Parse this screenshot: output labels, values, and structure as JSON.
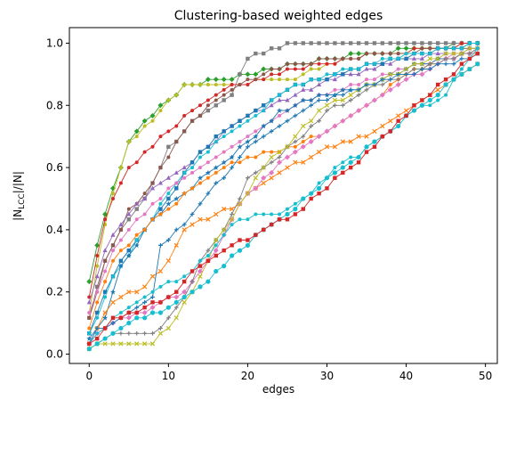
{
  "chart_data": {
    "type": "line",
    "title": "Clustering-based weighted edges",
    "xlabel": "edges",
    "ylabel": "|N_LCC|/|N|",
    "xlim": [
      -2.5,
      51.5
    ],
    "ylim": [
      -0.03,
      1.05
    ],
    "xticks": [
      0,
      10,
      20,
      30,
      40,
      50
    ],
    "yticks": [
      0.0,
      0.2,
      0.4,
      0.6,
      0.8,
      1.0
    ],
    "grid": false,
    "legend": false,
    "series": [
      {
        "color": "#2ca02c",
        "marker": "diamond",
        "anchors": [
          [
            0,
            0.24
          ],
          [
            2,
            0.45
          ],
          [
            4,
            0.6
          ],
          [
            5,
            0.69
          ],
          [
            8,
            0.77
          ],
          [
            12,
            0.86
          ],
          [
            16,
            0.88
          ],
          [
            22,
            0.91
          ],
          [
            30,
            0.95
          ],
          [
            40,
            0.98
          ],
          [
            49,
            1.0
          ]
        ]
      },
      {
        "color": "#bcbd22",
        "marker": "circle",
        "anchors": [
          [
            0,
            0.14
          ],
          [
            2,
            0.42
          ],
          [
            4,
            0.6
          ],
          [
            5,
            0.68
          ],
          [
            8,
            0.75
          ],
          [
            12,
            0.87
          ],
          [
            16,
            0.87
          ],
          [
            25,
            0.88
          ],
          [
            30,
            0.93
          ],
          [
            35,
            0.96
          ],
          [
            49,
            1.0
          ]
        ]
      },
      {
        "color": "#7f7f7f",
        "marker": "square",
        "anchors": [
          [
            0,
            0.12
          ],
          [
            2,
            0.3
          ],
          [
            4,
            0.4
          ],
          [
            7,
            0.5
          ],
          [
            10,
            0.66
          ],
          [
            14,
            0.77
          ],
          [
            18,
            0.84
          ],
          [
            20,
            0.95
          ],
          [
            25,
            1.0
          ],
          [
            49,
            1.0
          ]
        ]
      },
      {
        "color": "#d62728",
        "marker": "circle",
        "anchors": [
          [
            0,
            0.18
          ],
          [
            2,
            0.44
          ],
          [
            5,
            0.6
          ],
          [
            8,
            0.67
          ],
          [
            10,
            0.72
          ],
          [
            14,
            0.8
          ],
          [
            18,
            0.86
          ],
          [
            25,
            0.91
          ],
          [
            35,
            0.96
          ],
          [
            49,
            1.0
          ]
        ]
      },
      {
        "color": "#8c564b",
        "marker": "circle",
        "anchors": [
          [
            0,
            0.11
          ],
          [
            2,
            0.3
          ],
          [
            5,
            0.46
          ],
          [
            8,
            0.55
          ],
          [
            12,
            0.72
          ],
          [
            16,
            0.82
          ],
          [
            20,
            0.88
          ],
          [
            25,
            0.93
          ],
          [
            35,
            0.96
          ],
          [
            49,
            0.99
          ]
        ]
      },
      {
        "color": "#9467bd",
        "marker": "triangle",
        "anchors": [
          [
            0,
            0.16
          ],
          [
            2,
            0.34
          ],
          [
            5,
            0.45
          ],
          [
            9,
            0.55
          ],
          [
            13,
            0.62
          ],
          [
            17,
            0.71
          ],
          [
            21,
            0.78
          ],
          [
            25,
            0.82
          ],
          [
            30,
            0.88
          ],
          [
            40,
            0.95
          ],
          [
            49,
            0.98
          ]
        ]
      },
      {
        "color": "#1f77b4",
        "marker": "square",
        "anchors": [
          [
            0,
            0.07
          ],
          [
            2,
            0.2
          ],
          [
            4,
            0.3
          ],
          [
            7,
            0.4
          ],
          [
            10,
            0.5
          ],
          [
            13,
            0.62
          ],
          [
            16,
            0.7
          ],
          [
            20,
            0.76
          ],
          [
            26,
            0.86
          ],
          [
            35,
            0.93
          ],
          [
            49,
            1.0
          ]
        ]
      },
      {
        "color": "#17becf",
        "marker": "circle",
        "anchors": [
          [
            0,
            0.06
          ],
          [
            3,
            0.25
          ],
          [
            6,
            0.36
          ],
          [
            9,
            0.48
          ],
          [
            12,
            0.58
          ],
          [
            16,
            0.68
          ],
          [
            20,
            0.75
          ],
          [
            25,
            0.85
          ],
          [
            30,
            0.9
          ],
          [
            40,
            0.96
          ],
          [
            49,
            1.0
          ]
        ]
      },
      {
        "color": "#e377c2",
        "marker": "circle",
        "anchors": [
          [
            0,
            0.13
          ],
          [
            3,
            0.33
          ],
          [
            6,
            0.43
          ],
          [
            10,
            0.53
          ],
          [
            14,
            0.6
          ],
          [
            18,
            0.66
          ],
          [
            22,
            0.73
          ],
          [
            26,
            0.8
          ],
          [
            30,
            0.84
          ],
          [
            35,
            0.88
          ],
          [
            40,
            0.92
          ],
          [
            49,
            0.98
          ]
        ]
      },
      {
        "color": "#1f77b4",
        "marker": "star",
        "anchors": [
          [
            0,
            0.05
          ],
          [
            2,
            0.12
          ],
          [
            4,
            0.28
          ],
          [
            8,
            0.43
          ],
          [
            12,
            0.52
          ],
          [
            16,
            0.6
          ],
          [
            20,
            0.68
          ],
          [
            24,
            0.78
          ],
          [
            28,
            0.82
          ],
          [
            35,
            0.86
          ],
          [
            40,
            0.92
          ],
          [
            49,
            0.97
          ]
        ]
      },
      {
        "color": "#ff7f0e",
        "marker": "circle",
        "anchors": [
          [
            0,
            0.09
          ],
          [
            3,
            0.3
          ],
          [
            6,
            0.38
          ],
          [
            9,
            0.45
          ],
          [
            13,
            0.53
          ],
          [
            17,
            0.6
          ],
          [
            21,
            0.64
          ],
          [
            25,
            0.66
          ],
          [
            30,
            0.72
          ],
          [
            35,
            0.8
          ],
          [
            40,
            0.9
          ],
          [
            45,
            0.95
          ],
          [
            49,
            0.97
          ]
        ]
      },
      {
        "color": "#ff7f0e",
        "marker": "x",
        "anchors": [
          [
            0,
            0.04
          ],
          [
            3,
            0.17
          ],
          [
            7,
            0.22
          ],
          [
            10,
            0.3
          ],
          [
            12,
            0.4
          ],
          [
            15,
            0.44
          ],
          [
            18,
            0.47
          ],
          [
            20,
            0.51
          ],
          [
            25,
            0.6
          ],
          [
            30,
            0.66
          ],
          [
            35,
            0.7
          ],
          [
            40,
            0.78
          ],
          [
            45,
            0.86
          ],
          [
            49,
            0.93
          ]
        ]
      },
      {
        "color": "#e377c2",
        "marker": "diamond",
        "anchors": [
          [
            0,
            0.04
          ],
          [
            3,
            0.1
          ],
          [
            8,
            0.15
          ],
          [
            12,
            0.2
          ],
          [
            15,
            0.3
          ],
          [
            17,
            0.38
          ],
          [
            19,
            0.49
          ],
          [
            22,
            0.56
          ],
          [
            25,
            0.64
          ],
          [
            30,
            0.72
          ],
          [
            35,
            0.8
          ],
          [
            40,
            0.88
          ],
          [
            45,
            0.95
          ],
          [
            49,
            0.98
          ]
        ]
      },
      {
        "color": "#7f7f7f",
        "marker": "plus",
        "anchors": [
          [
            0,
            0.02
          ],
          [
            2,
            0.05
          ],
          [
            3,
            0.07
          ],
          [
            8,
            0.07
          ],
          [
            9,
            0.09
          ],
          [
            12,
            0.18
          ],
          [
            14,
            0.3
          ],
          [
            17,
            0.4
          ],
          [
            20,
            0.56
          ],
          [
            23,
            0.62
          ],
          [
            27,
            0.7
          ],
          [
            30,
            0.78
          ],
          [
            35,
            0.85
          ],
          [
            40,
            0.9
          ],
          [
            45,
            0.95
          ],
          [
            49,
            0.98
          ]
        ]
      },
      {
        "color": "#bcbd22",
        "marker": "x",
        "anchors": [
          [
            0,
            0.02
          ],
          [
            2,
            0.03
          ],
          [
            8,
            0.03
          ],
          [
            9,
            0.06
          ],
          [
            11,
            0.12
          ],
          [
            14,
            0.25
          ],
          [
            16,
            0.36
          ],
          [
            19,
            0.48
          ],
          [
            22,
            0.6
          ],
          [
            26,
            0.7
          ],
          [
            30,
            0.8
          ],
          [
            35,
            0.86
          ],
          [
            40,
            0.92
          ],
          [
            49,
            0.99
          ]
        ]
      },
      {
        "color": "#1f77b4",
        "marker": "plus",
        "anchors": [
          [
            0,
            0.03
          ],
          [
            1,
            0.08
          ],
          [
            3,
            0.1
          ],
          [
            6,
            0.15
          ],
          [
            8,
            0.18
          ],
          [
            9,
            0.35
          ],
          [
            12,
            0.42
          ],
          [
            15,
            0.52
          ],
          [
            18,
            0.6
          ],
          [
            20,
            0.66
          ],
          [
            24,
            0.74
          ],
          [
            28,
            0.8
          ],
          [
            32,
            0.84
          ],
          [
            40,
            0.9
          ],
          [
            49,
            0.96
          ]
        ]
      },
      {
        "color": "#17becf",
        "marker": "circle",
        "anchors": [
          [
            0,
            0.03
          ],
          [
            3,
            0.12
          ],
          [
            6,
            0.17
          ],
          [
            9,
            0.22
          ],
          [
            12,
            0.25
          ],
          [
            15,
            0.32
          ],
          [
            18,
            0.41
          ],
          [
            20,
            0.44
          ],
          [
            25,
            0.46
          ],
          [
            28,
            0.52
          ],
          [
            31,
            0.6
          ],
          [
            34,
            0.64
          ],
          [
            37,
            0.7
          ],
          [
            40,
            0.76
          ],
          [
            45,
            0.84
          ],
          [
            49,
            0.98
          ]
        ]
      },
      {
        "color": "#17becf",
        "marker": "hexagon",
        "anchors": [
          [
            0,
            0.01
          ],
          [
            2,
            0.05
          ],
          [
            5,
            0.1
          ],
          [
            8,
            0.13
          ],
          [
            10,
            0.15
          ],
          [
            12,
            0.18
          ],
          [
            15,
            0.24
          ],
          [
            18,
            0.31
          ],
          [
            21,
            0.38
          ],
          [
            25,
            0.45
          ],
          [
            29,
            0.54
          ],
          [
            33,
            0.62
          ],
          [
            37,
            0.7
          ],
          [
            41,
            0.78
          ],
          [
            45,
            0.86
          ],
          [
            49,
            0.94
          ]
        ]
      },
      {
        "color": "#d62728",
        "marker": "square",
        "anchors": [
          [
            0,
            0.03
          ],
          [
            3,
            0.11
          ],
          [
            7,
            0.15
          ],
          [
            10,
            0.18
          ],
          [
            13,
            0.26
          ],
          [
            16,
            0.32
          ],
          [
            19,
            0.36
          ],
          [
            22,
            0.4
          ],
          [
            26,
            0.45
          ],
          [
            30,
            0.54
          ],
          [
            34,
            0.62
          ],
          [
            38,
            0.72
          ],
          [
            41,
            0.8
          ],
          [
            45,
            0.88
          ],
          [
            49,
            0.97
          ]
        ]
      }
    ]
  }
}
